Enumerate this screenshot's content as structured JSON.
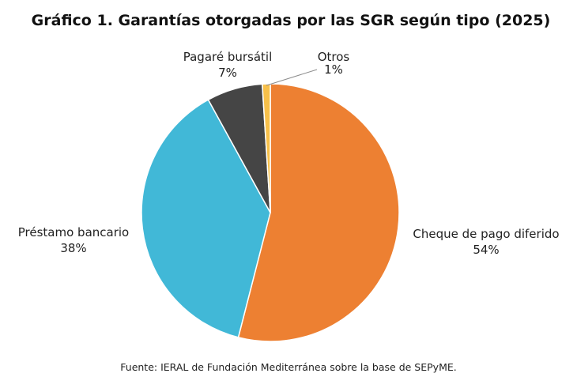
{
  "chart_data": {
    "type": "pie",
    "title": "Gráfico 1. Garantías otorgadas por las SGR según tipo (2025)",
    "slices": [
      {
        "label": "Cheque de pago diferido",
        "value": 54,
        "value_label": "54%",
        "color": "#ED8032"
      },
      {
        "label": "Préstamo bancario",
        "value": 38,
        "value_label": "38%",
        "color": "#41B8D7"
      },
      {
        "label": "Pagaré bursátil",
        "value": 7,
        "value_label": "7%",
        "color": "#454545"
      },
      {
        "label": "Otros",
        "value": 1,
        "value_label": "1%",
        "color": "#F7C04A"
      }
    ],
    "legend": "none"
  },
  "source": "Fuente: IERAL de Fundación Mediterránea sobre la base de SEPyME."
}
